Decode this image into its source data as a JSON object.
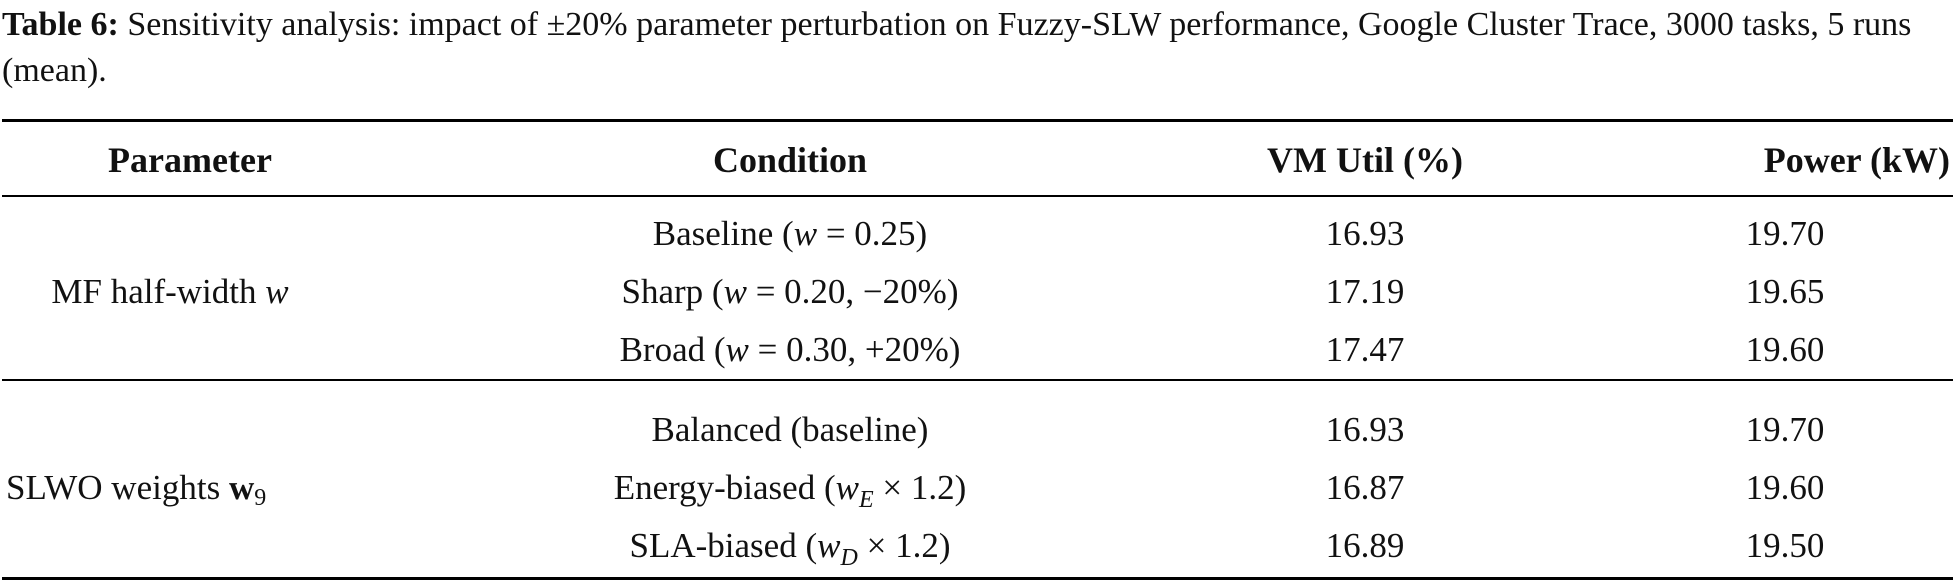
{
  "caption": {
    "label": "Table 6:",
    "text": " Sensitivity analysis: impact of ±20% parameter perturbation on Fuzzy-SLW performance, Google Cluster Trace, 3000 tasks, 5 runs (mean)."
  },
  "table": {
    "headers": [
      "Parameter",
      "Condition",
      "VM Util (%)",
      "Power (kW)"
    ],
    "groups": [
      {
        "parameter": {
          "text": "MF half-width ",
          "symbol": "w"
        },
        "rows": [
          {
            "cond_pre": "Baseline (",
            "cond_sym": "w",
            "cond_sub": "",
            "cond_post": " = 0.25)",
            "util": "16.93",
            "power": "19.70"
          },
          {
            "cond_pre": "Sharp (",
            "cond_sym": "w",
            "cond_sub": "",
            "cond_post": " = 0.20, −20%)",
            "util": "17.19",
            "power": "19.65"
          },
          {
            "cond_pre": "Broad (",
            "cond_sym": "w",
            "cond_sub": "",
            "cond_post": " = 0.30, +20%)",
            "util": "17.47",
            "power": "19.60"
          }
        ]
      },
      {
        "parameter": {
          "text": "SLWO weights ",
          "symbol": "w",
          "subscript": "9"
        },
        "rows": [
          {
            "cond_pre": "Balanced (baseline)",
            "cond_sym": "",
            "cond_sub": "",
            "cond_post": "",
            "util": "16.93",
            "power": "19.70"
          },
          {
            "cond_pre": "Energy-biased (",
            "cond_sym": "w",
            "cond_sub": "E",
            "cond_post": " × 1.2)",
            "util": "16.87",
            "power": "19.60"
          },
          {
            "cond_pre": "SLA-biased (",
            "cond_sym": "w",
            "cond_sub": "D",
            "cond_post": " × 1.2)",
            "util": "16.89",
            "power": "19.50"
          }
        ]
      }
    ]
  }
}
